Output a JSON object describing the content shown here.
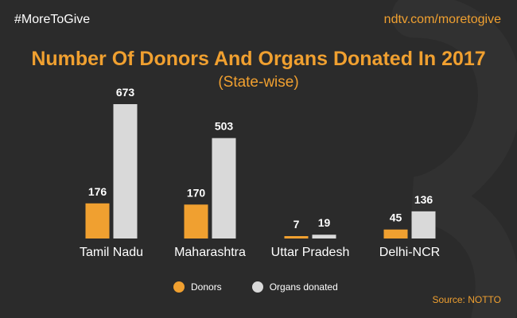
{
  "header": {
    "hashtag": "#MoreToGive",
    "site": "ndtv.com/moretogive"
  },
  "source": "Source: NOTTO",
  "colors": {
    "background": "#2b2b2b",
    "accent": "#f0a030",
    "donors": "#f0a030",
    "organs": "#d9d9d9",
    "text": "#ffffff"
  },
  "chart_data": {
    "type": "bar",
    "title": "Number Of Donors And Organs Donated In 2017",
    "subtitle": "(State-wise)",
    "categories": [
      "Tamil Nadu",
      "Maharashtra",
      "Uttar Pradesh",
      "Delhi-NCR"
    ],
    "series": [
      {
        "name": "Donors",
        "values": [
          176,
          170,
          7,
          45
        ]
      },
      {
        "name": "Organs donated",
        "values": [
          673,
          503,
          19,
          136
        ]
      }
    ],
    "ylim": [
      0,
      673
    ],
    "grid": false,
    "legend": "bottom-center"
  }
}
